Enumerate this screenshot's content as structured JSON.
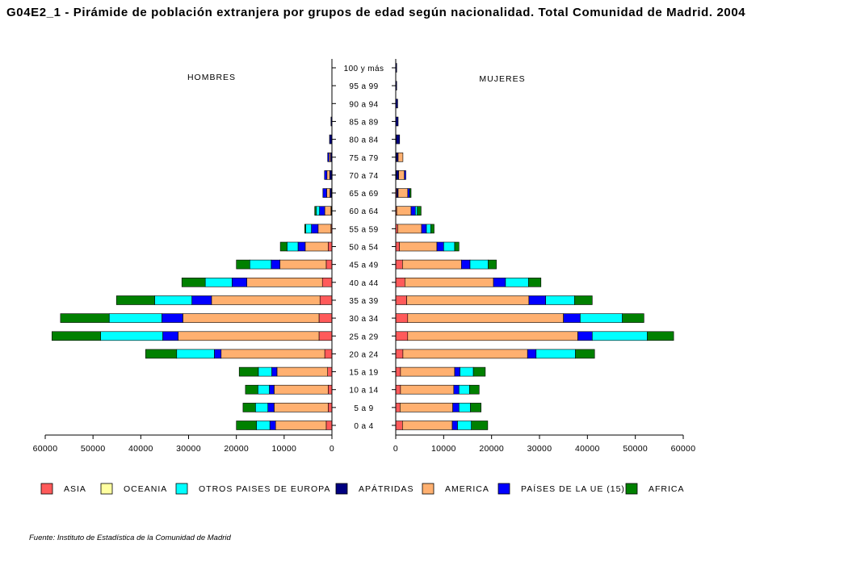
{
  "title": "G04E2_1 - Pirámide de población extranjera por grupos de edad según nacionalidad. Total Comunidad de Madrid. 2004",
  "source": "Fuente: Instituto de Estadística de la Comunidad de Madrid",
  "chart_data": {
    "type": "bar",
    "subtype": "population-pyramid-stacked",
    "title": "G04E2_1 - Pirámide de población extranjera por grupos de edad según nacionalidad. Total Comunidad de Madrid. 2004",
    "left_label": "HOMBRES",
    "right_label": "MUJERES",
    "categories": [
      "0 a 4",
      "5 a 9",
      "10 a 14",
      "15 a 19",
      "20 a 24",
      "25 a 29",
      "30 a 34",
      "35 a 39",
      "40 a  44",
      "45 a 49",
      "50 a 54",
      "55 a 59",
      "60 a 64",
      "65 a 69",
      "70 a 74",
      "75 a 79",
      "80 a 84",
      "85 a 89",
      "90 a 94",
      "95 a 99",
      "100 y más"
    ],
    "xlim": [
      0,
      60000
    ],
    "ticks": [
      0,
      10000,
      20000,
      30000,
      40000,
      50000,
      60000
    ],
    "tick_labels": [
      "0",
      "10000",
      "20000",
      "30000",
      "40000",
      "50000",
      "60000"
    ],
    "legend_position": "bottom",
    "colors": {
      "ASIA": "#ff5a5a",
      "OCEANIA": "#ffffa0",
      "OTROS PAISES DE EUROPA": "#00ffff",
      "APÁTRIDAS": "#000080",
      "AMERICA": "#ffb070",
      "PAÍSES DE LA UE (15)": "#0000ff",
      "AFRICA": "#008000"
    },
    "legend_items": [
      "ASIA",
      "OCEANIA",
      "OTROS PAISES DE EUROPA",
      "APÁTRIDAS",
      "AMERICA",
      "PAÍSES DE LA UE (15)",
      "AFRICA"
    ],
    "stack_order": [
      "ASIA",
      "OCEANIA",
      "APÁTRIDAS",
      "AMERICA",
      "PAÍSES DE LA UE (15)",
      "OTROS PAISES DE EUROPA",
      "AFRICA"
    ],
    "men": [
      {
        "name": "ASIA",
        "values": [
          1200,
          800,
          800,
          900,
          1500,
          2700,
          2700,
          2500,
          2000,
          1200,
          800,
          200,
          100,
          100,
          50,
          0,
          0,
          0,
          0,
          0,
          0
        ]
      },
      {
        "name": "OCEANIA",
        "values": [
          0,
          0,
          0,
          0,
          0,
          0,
          0,
          0,
          0,
          0,
          0,
          0,
          0,
          0,
          0,
          0,
          0,
          0,
          0,
          0,
          0
        ]
      },
      {
        "name": "APÁTRIDAS",
        "values": [
          0,
          0,
          0,
          0,
          0,
          0,
          0,
          0,
          0,
          0,
          0,
          0,
          100,
          300,
          400,
          300,
          500,
          200,
          0,
          0,
          0
        ]
      },
      {
        "name": "AMERICA",
        "values": [
          10600,
          11300,
          11300,
          10600,
          21700,
          29500,
          28500,
          22700,
          15800,
          9700,
          4800,
          2700,
          1300,
          700,
          600,
          300,
          0,
          0,
          0,
          0,
          0
        ]
      },
      {
        "name": "PAÍSES DE LA UE (15)",
        "values": [
          1200,
          1300,
          1000,
          1100,
          1400,
          3200,
          4400,
          4100,
          3100,
          1800,
          1500,
          1400,
          1100,
          800,
          500,
          300,
          0,
          0,
          0,
          0,
          0
        ]
      },
      {
        "name": "OTROS PAISES DE EUROPA",
        "values": [
          2800,
          2600,
          2400,
          2800,
          7900,
          13000,
          11000,
          7800,
          5600,
          4500,
          2300,
          1200,
          700,
          0,
          0,
          0,
          0,
          0,
          0,
          0,
          0
        ]
      },
      {
        "name": "AFRICA",
        "values": [
          4200,
          2600,
          2600,
          4000,
          6500,
          10200,
          10200,
          8000,
          4900,
          2800,
          1400,
          200,
          300,
          0,
          0,
          0,
          0,
          0,
          0,
          0,
          0
        ]
      }
    ],
    "women": [
      {
        "name": "ASIA",
        "values": [
          1400,
          900,
          1000,
          1000,
          1500,
          2500,
          2500,
          2300,
          1900,
          1400,
          800,
          400,
          200,
          200,
          100,
          100,
          100,
          0,
          0,
          0,
          0
        ]
      },
      {
        "name": "OCEANIA",
        "values": [
          0,
          0,
          0,
          0,
          0,
          0,
          0,
          0,
          0,
          0,
          0,
          0,
          0,
          0,
          0,
          0,
          0,
          0,
          0,
          0,
          0
        ]
      },
      {
        "name": "APÁTRIDAS",
        "values": [
          0,
          0,
          0,
          0,
          0,
          0,
          0,
          0,
          0,
          0,
          0,
          0,
          0,
          300,
          500,
          400,
          700,
          500,
          400,
          200,
          200
        ]
      },
      {
        "name": "AMERICA",
        "values": [
          10400,
          11000,
          11100,
          11300,
          26000,
          35500,
          32500,
          25500,
          18500,
          12300,
          7800,
          5000,
          3000,
          2000,
          1200,
          1000,
          0,
          0,
          0,
          0,
          0
        ]
      },
      {
        "name": "PAÍSES DE LA UE (15)",
        "values": [
          1100,
          1300,
          1100,
          1100,
          1800,
          3000,
          3500,
          3500,
          2500,
          1800,
          1400,
          1000,
          900,
          400,
          300,
          0,
          0,
          0,
          0,
          0,
          0
        ]
      },
      {
        "name": "OTROS PAISES DE EUROPA",
        "values": [
          2900,
          2400,
          2200,
          2800,
          8200,
          11500,
          8800,
          6000,
          4800,
          3800,
          2300,
          900,
          400,
          0,
          0,
          0,
          0,
          0,
          0,
          0,
          0
        ]
      },
      {
        "name": "AFRICA",
        "values": [
          3400,
          2200,
          2000,
          2500,
          4000,
          5500,
          4500,
          3700,
          2600,
          1700,
          900,
          700,
          800,
          300,
          0,
          0,
          0,
          0,
          0,
          0,
          0
        ]
      }
    ]
  }
}
